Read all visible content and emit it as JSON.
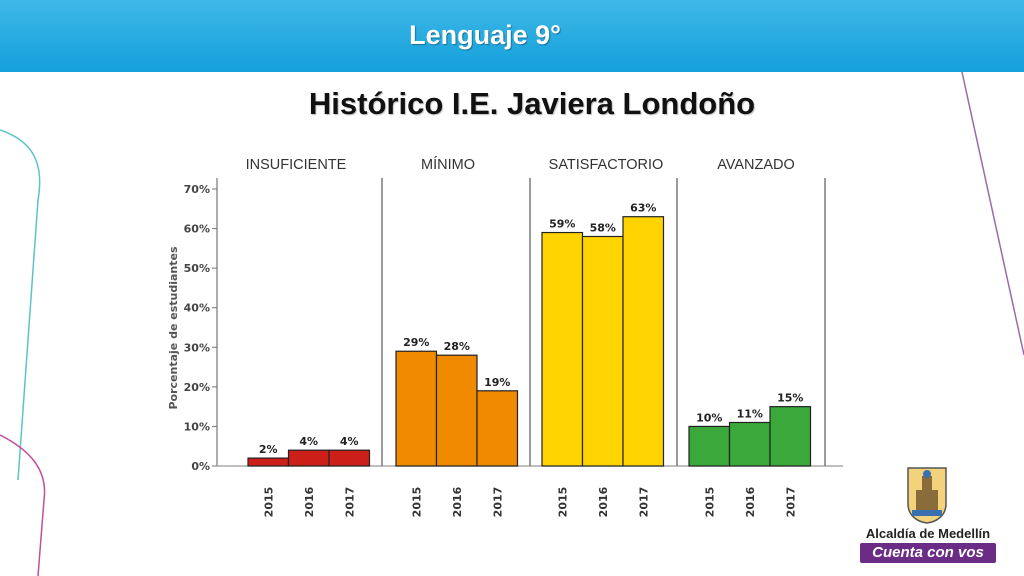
{
  "header": {
    "title": "Lenguaje 9°"
  },
  "slide": {
    "title": "Histórico I.E. Javiera Londoño"
  },
  "logo": {
    "line1": "Alcaldía de Medellín",
    "line2": "Cuenta con vos"
  },
  "chart_data": {
    "type": "bar",
    "title": "",
    "ylabel": "Porcentaje de estudiantes",
    "xlabel": "",
    "ylim": [
      0,
      70
    ],
    "yticks": [
      "0%",
      "10%",
      "20%",
      "30%",
      "40%",
      "50%",
      "60%",
      "70%"
    ],
    "grid": false,
    "groups": [
      {
        "name": "INSUFICIENTE",
        "color": "#cc1f1a",
        "categories": [
          "2015",
          "2016",
          "2017"
        ],
        "values": [
          2,
          4,
          4
        ],
        "labels": [
          "2%",
          "4%",
          "4%"
        ]
      },
      {
        "name": "MÍNIMO",
        "color": "#f08a00",
        "categories": [
          "2015",
          "2016",
          "2017"
        ],
        "values": [
          29,
          28,
          19
        ],
        "labels": [
          "29%",
          "28%",
          "19%"
        ]
      },
      {
        "name": "SATISFACTORIO",
        "color": "#ffd400",
        "categories": [
          "2015",
          "2016",
          "2017"
        ],
        "values": [
          59,
          58,
          63
        ],
        "labels": [
          "59%",
          "58%",
          "63%"
        ]
      },
      {
        "name": "AVANZADO",
        "color": "#3aa83a",
        "categories": [
          "2015",
          "2016",
          "2017"
        ],
        "values": [
          10,
          11,
          15
        ],
        "labels": [
          "10%",
          "11%",
          "15%"
        ]
      }
    ]
  }
}
